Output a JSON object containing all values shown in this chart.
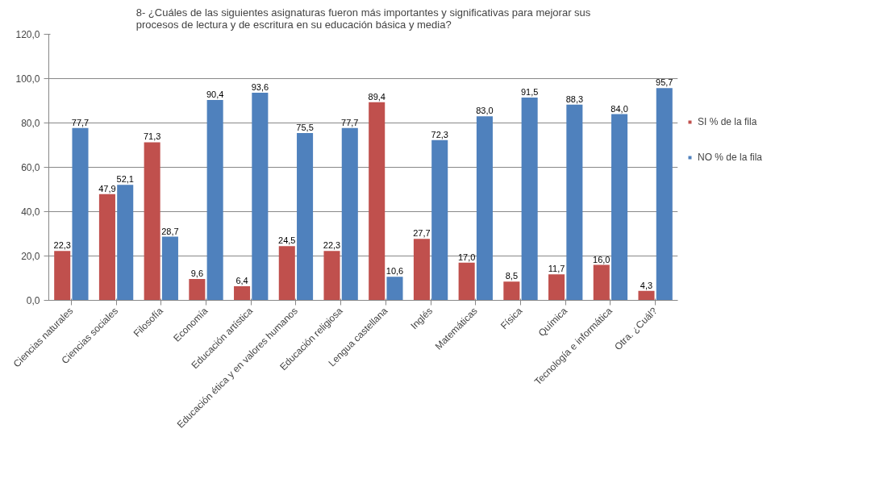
{
  "chart_data": {
    "type": "bar",
    "title": "8- ¿Cuáles de las siguientes asignaturas fueron más importantes y significativas para mejorar sus procesos de lectura y de escritura en su educación básica y media?",
    "categories": [
      "Ciencias naturales",
      "Ciencias sociales",
      "Filosofía",
      "Economía",
      "Educación artística",
      "Educación ética y en valores humanos",
      "Educación religiosa",
      "Lengua castellana",
      "Inglés",
      "Matemáticas",
      "Física",
      "Química",
      "Tecnología e informática",
      "Otra. ¿Cuál?"
    ],
    "series": [
      {
        "name": "SI % de la fila",
        "color": "#c0504d",
        "values": [
          22.3,
          47.9,
          71.3,
          9.6,
          6.4,
          24.5,
          22.3,
          89.4,
          27.7,
          17.0,
          8.5,
          11.7,
          16.0,
          4.3
        ],
        "value_labels": [
          "22,3",
          "47,9",
          "71,3",
          "9,6",
          "6,4",
          "24,5",
          "22,3",
          "89,4",
          "27,7",
          "17,0",
          "8,5",
          "11,7",
          "16,0",
          "4,3"
        ]
      },
      {
        "name": "NO % de la fila",
        "color": "#4f81bd",
        "values": [
          77.7,
          52.1,
          28.7,
          90.4,
          93.6,
          75.5,
          77.7,
          10.6,
          72.3,
          83.0,
          91.5,
          88.3,
          84.0,
          95.7
        ],
        "value_labels": [
          "77,7",
          "52,1",
          "28,7",
          "90,4",
          "93,6",
          "75,5",
          "77,7",
          "10,6",
          "72,3",
          "83,0",
          "91,5",
          "88,3",
          "84,0",
          "95,7"
        ]
      }
    ],
    "ylim": [
      0,
      120
    ],
    "yticks": [
      {
        "value": 0,
        "label": "0,0"
      },
      {
        "value": 20,
        "label": "20,0"
      },
      {
        "value": 40,
        "label": "40,0"
      },
      {
        "value": 60,
        "label": "60,0"
      },
      {
        "value": 80,
        "label": "80,0"
      },
      {
        "value": 100,
        "label": "100,0"
      },
      {
        "value": 120,
        "label": "120,0"
      }
    ],
    "grid": "y",
    "legend": "right"
  }
}
